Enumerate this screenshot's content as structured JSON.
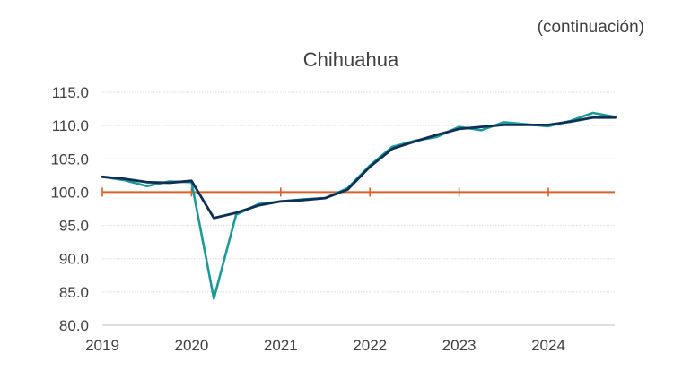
{
  "header": {
    "note": "(continuación)"
  },
  "chart_data": {
    "type": "line",
    "title": "Chihuahua",
    "xlabel": "",
    "ylabel": "",
    "xlim": [
      2019,
      2024.75
    ],
    "ylim": [
      80,
      115
    ],
    "y_ticks": [
      "80.0",
      "85.0",
      "90.0",
      "95.0",
      "100.0",
      "105.0",
      "110.0",
      "115.0"
    ],
    "x_ticks": [
      "2019",
      "2020",
      "2021",
      "2022",
      "2023",
      "2024"
    ],
    "grid": true,
    "legend": "none",
    "reference_line": {
      "y": 100,
      "color": "#D4622A"
    },
    "series": [
      {
        "color": "#1A9A96",
        "x": [
          2019.0,
          2019.25,
          2019.5,
          2019.75,
          2020.0,
          2020.25,
          2020.5,
          2020.75,
          2021.0,
          2021.25,
          2021.5,
          2021.75,
          2022.0,
          2022.25,
          2022.5,
          2022.75,
          2023.0,
          2023.25,
          2023.5,
          2023.75,
          2024.0,
          2024.25,
          2024.5,
          2024.75
        ],
        "y": [
          102.3,
          101.8,
          100.9,
          101.6,
          101.5,
          84.0,
          96.6,
          98.2,
          98.6,
          98.9,
          99.1,
          100.6,
          104.0,
          106.8,
          107.7,
          108.3,
          109.8,
          109.3,
          110.5,
          110.2,
          109.9,
          110.7,
          111.9,
          111.3
        ]
      },
      {
        "color": "#0E2F56",
        "x": [
          2019.0,
          2019.25,
          2019.5,
          2019.75,
          2020.0,
          2020.25,
          2020.5,
          2020.75,
          2021.0,
          2021.25,
          2021.5,
          2021.75,
          2022.0,
          2022.25,
          2022.5,
          2022.75,
          2023.0,
          2023.25,
          2023.5,
          2023.75,
          2024.0,
          2024.25,
          2024.5,
          2024.75
        ],
        "y": [
          102.3,
          102.0,
          101.5,
          101.4,
          101.7,
          96.1,
          96.9,
          98.0,
          98.6,
          98.8,
          99.1,
          100.4,
          103.8,
          106.5,
          107.6,
          108.6,
          109.5,
          109.8,
          110.1,
          110.1,
          110.1,
          110.6,
          111.2,
          111.2
        ]
      }
    ]
  }
}
